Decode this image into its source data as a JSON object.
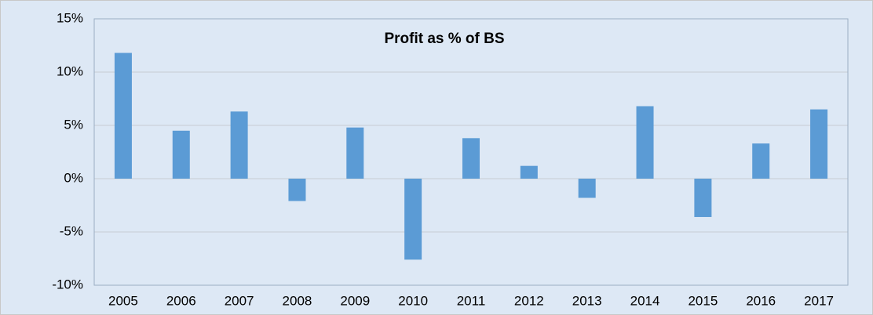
{
  "chart_data": {
    "type": "bar",
    "title": "Profit as % of BS",
    "categories": [
      "2005",
      "2006",
      "2007",
      "2008",
      "2009",
      "2010",
      "2011",
      "2012",
      "2013",
      "2014",
      "2015",
      "2016",
      "2017"
    ],
    "values": [
      11.8,
      4.5,
      6.3,
      -2.1,
      4.8,
      -7.6,
      3.8,
      1.2,
      -1.8,
      6.8,
      -3.6,
      3.3,
      6.5
    ],
    "color": "#5b9bd5",
    "ylim": [
      -10,
      15
    ],
    "yticks": [
      {
        "value": -10,
        "label": "-10%"
      },
      {
        "value": -5,
        "label": "-5%"
      },
      {
        "value": 0,
        "label": "0%"
      },
      {
        "value": 5,
        "label": "5%"
      },
      {
        "value": 10,
        "label": "10%"
      },
      {
        "value": 15,
        "label": "15%"
      }
    ],
    "grid": true
  }
}
